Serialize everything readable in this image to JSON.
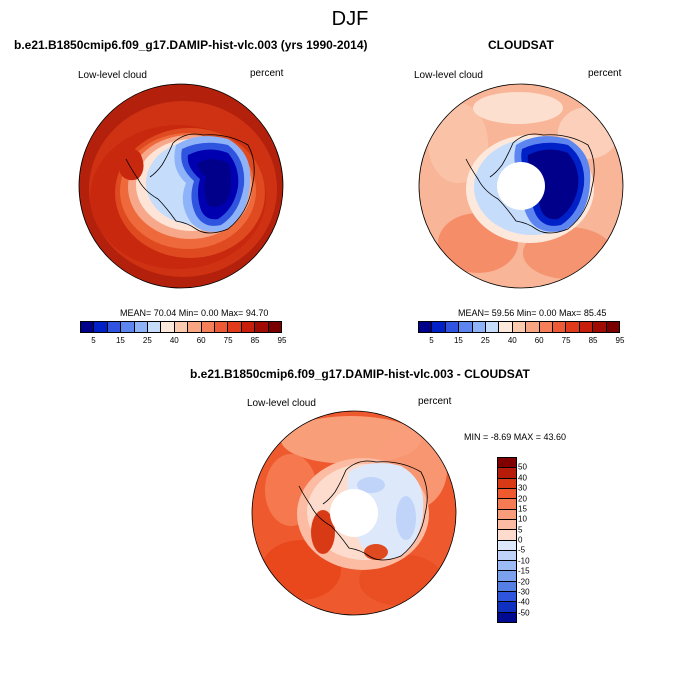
{
  "main_title": "DJF",
  "panel_model": {
    "title": "b.e21.B1850cmip6.f09_g17.DAMIP-hist-vlc.003 (yrs 1990-2014)",
    "left_label": "Low-level cloud",
    "right_label": "percent",
    "stats": "MEAN=  70.04  Min=   0.00  Max=  94.70"
  },
  "panel_obs": {
    "title": "CLOUDSAT",
    "left_label": "Low-level cloud",
    "right_label": "percent",
    "stats": "MEAN=  59.56  Min=   0.00  Max=  85.45"
  },
  "panel_diff": {
    "title": "b.e21.B1850cmip6.f09_g17.DAMIP-hist-vlc.003 - CLOUDSAT",
    "left_label": "Low-level cloud",
    "right_label": "percent",
    "stats": "MIN = -8.69 MAX =  43.60"
  },
  "abs_colorbar": {
    "colors": [
      "#00008b",
      "#0020c8",
      "#2f55e0",
      "#5c85f0",
      "#8fb3f8",
      "#c6dcfb",
      "#fde9dc",
      "#fbc9ae",
      "#f8a581",
      "#f47f58",
      "#ee5a35",
      "#e23b1c",
      "#c81e0c",
      "#a00c04",
      "#7a0000"
    ],
    "labels": [
      "5",
      "15",
      "25",
      "40",
      "60",
      "75",
      "85",
      "95"
    ]
  },
  "diff_colorbar": {
    "colors": [
      "#800000",
      "#b71c0a",
      "#d93a16",
      "#ee5a2e",
      "#f57b52",
      "#f89c7a",
      "#fbbca3",
      "#fddccd",
      "#dde9fb",
      "#bfd4f8",
      "#9dbcf5",
      "#7aa0ee",
      "#567fe6",
      "#2f55dc",
      "#1030c0",
      "#000a90"
    ],
    "labels": [
      "50",
      "40",
      "30",
      "20",
      "15",
      "10",
      "5",
      "0",
      "-5",
      "-10",
      "-15",
      "-20",
      "-30",
      "-40",
      "-50"
    ]
  }
}
